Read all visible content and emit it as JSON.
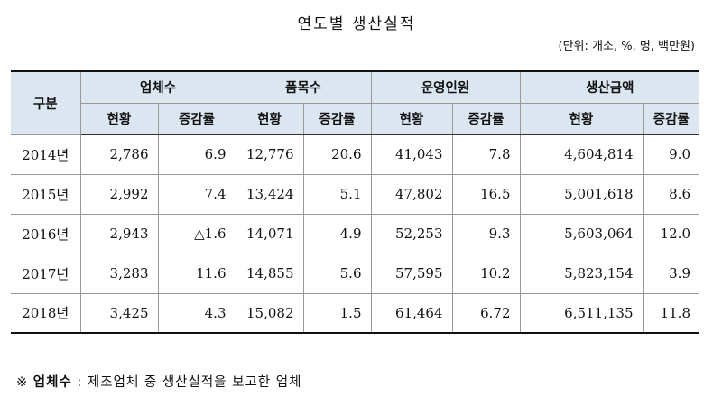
{
  "title": "연도별 생산실적",
  "unit": "(단위: 개소, %, 명, 백만원)",
  "table": {
    "header_row1": {
      "category": "구분",
      "companies": "업체수",
      "items": "품목수",
      "staff": "운영인원",
      "amount": "생산금액"
    },
    "header_row2": {
      "current": "현황",
      "change": "증감률"
    },
    "rows": [
      [
        "2014년",
        "2,786",
        "6.9",
        "12,776",
        "20.6",
        "41,043",
        "7.8",
        "4,604,814",
        "9.0"
      ],
      [
        "2015년",
        "2,992",
        "7.4",
        "13,424",
        "5.1",
        "47,802",
        "16.5",
        "5,001,618",
        "8.6"
      ],
      [
        "2016년",
        "2,943",
        "△1.6",
        "14,071",
        "4.9",
        "52,253",
        "9.3",
        "5,603,064",
        "12.0"
      ],
      [
        "2017년",
        "3,283",
        "11.6",
        "14,855",
        "5.6",
        "57,595",
        "10.2",
        "5,823,154",
        "3.9"
      ],
      [
        "2018년",
        "3,425",
        "4.3",
        "15,082",
        "1.5",
        "61,464",
        "6.72",
        "6,511,135",
        "11.8"
      ]
    ]
  },
  "note": {
    "prefix": "※ ",
    "keyword": "업체수",
    "text": " : 제조업체 중 생산실적을 보고한 업체"
  }
}
